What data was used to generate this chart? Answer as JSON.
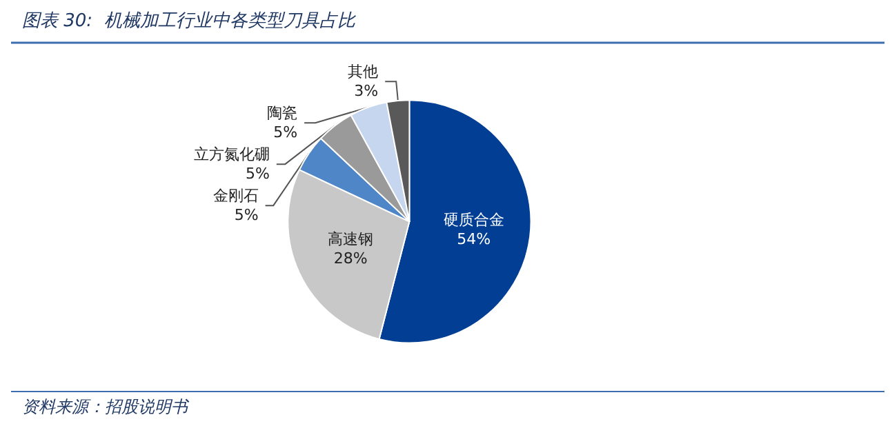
{
  "chart_data": {
    "type": "pie",
    "title": "图表 30:  机械加工行业中各类型刀具占比",
    "annotations": [
      "资料来源：招股说明书"
    ],
    "categories": [
      "硬质合金",
      "高速钢",
      "金刚石",
      "立方氮化硼",
      "陶瓷",
      "其他"
    ],
    "values": [
      54,
      28,
      5,
      5,
      5,
      3
    ],
    "value_labels": [
      "54%",
      "28%",
      "5%",
      "5%",
      "5%",
      "3%"
    ],
    "colors": [
      "#023e93",
      "#c8c8c8",
      "#4e86c8",
      "#9a9a9a",
      "#c6d6ee",
      "#595959"
    ],
    "legend": false
  }
}
